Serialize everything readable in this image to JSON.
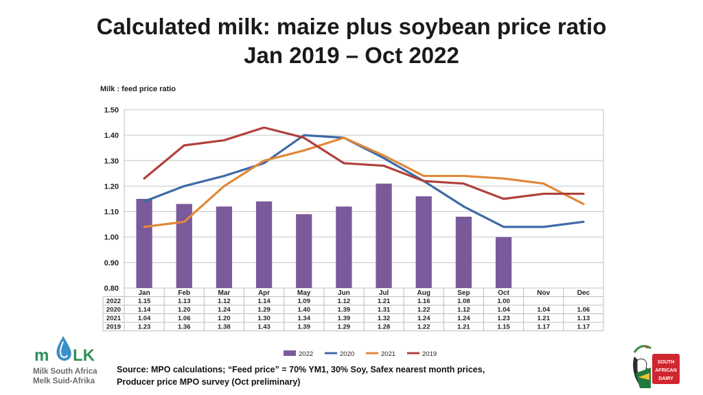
{
  "title_line1": "Calculated milk: maize plus soybean price ratio",
  "title_line2": "Jan 2019 –  Oct 2022",
  "source_line1": "Source: MPO calculations; “Feed price” = 70% YM1, 30% Soy, Safex nearest month prices,",
  "source_line2": "Producer price MPO survey (Oct preliminary)",
  "logo_left": {
    "mark": "MILK",
    "line1": "Milk South Africa",
    "line2": "Melk Suid-Afrika"
  },
  "logo_right": {
    "line1": "SOUTH",
    "line2": "AFRICAN",
    "line3": "DAIRY"
  },
  "chart_data": {
    "type": "bar+line",
    "ylabel": "Milk : feed price ratio",
    "ylim": [
      0.8,
      1.5
    ],
    "yticks": [
      "0.80",
      "0.90",
      "1.00",
      "1.10",
      "1.20",
      "1.30",
      "1.40",
      "1.50"
    ],
    "categories": [
      "Jan",
      "Feb",
      "Mar",
      "Apr",
      "May",
      "Jun",
      "Jul",
      "Aug",
      "Sep",
      "Oct",
      "Nov",
      "Dec"
    ],
    "grid": true,
    "legend_position": "bottom",
    "series": [
      {
        "name": "2022",
        "kind": "bar",
        "color": "#7b5a9b",
        "values": [
          1.15,
          1.13,
          1.12,
          1.14,
          1.09,
          1.12,
          1.21,
          1.16,
          1.08,
          1.0,
          null,
          null
        ],
        "labels": [
          "1.15",
          "1.13",
          "1.12",
          "1.14",
          "1.09",
          "1.12",
          "1.21",
          "1.16",
          "1.08",
          "1.00",
          "",
          ""
        ]
      },
      {
        "name": "2020",
        "kind": "line",
        "color": "#3e6aa6",
        "values": [
          1.14,
          1.2,
          1.24,
          1.29,
          1.4,
          1.39,
          1.31,
          1.22,
          1.12,
          1.04,
          1.04,
          1.06
        ],
        "labels": [
          "1.14",
          "1.20",
          "1.24",
          "1.29",
          "1.40",
          "1.39",
          "1.31",
          "1.22",
          "1.12",
          "1.04",
          "1.04",
          "1.06"
        ]
      },
      {
        "name": "2021",
        "kind": "line",
        "color": "#e0883a",
        "values": [
          1.04,
          1.06,
          1.2,
          1.3,
          1.34,
          1.39,
          1.32,
          1.24,
          1.24,
          1.23,
          1.21,
          1.13
        ],
        "labels": [
          "1.04",
          "1.06",
          "1.20",
          "1.30",
          "1.34",
          "1.39",
          "1.32",
          "1.24",
          "1.24",
          "1.23",
          "1.21",
          "1.13"
        ]
      },
      {
        "name": "2019",
        "kind": "line",
        "color": "#b0403c",
        "values": [
          1.23,
          1.36,
          1.38,
          1.43,
          1.39,
          1.29,
          1.28,
          1.22,
          1.21,
          1.15,
          1.17,
          1.17
        ],
        "labels": [
          "1.23",
          "1.36",
          "1.38",
          "1.43",
          "1.39",
          "1.29",
          "1.28",
          "1.22",
          "1.21",
          "1.15",
          "1.17",
          "1.17"
        ]
      }
    ]
  }
}
